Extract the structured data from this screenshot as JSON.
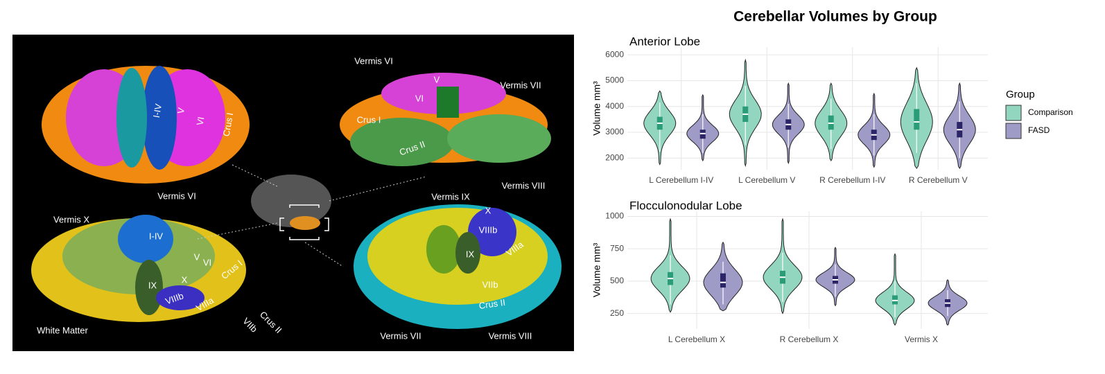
{
  "image": {
    "labels": [
      "Vermis VI",
      "I-IV",
      "V",
      "VI",
      "Crus I",
      "Vermis X",
      "White Matter",
      "I-IV",
      "V",
      "VI",
      "Crus I",
      "IX",
      "X",
      "VIIIb",
      "VIIIa",
      "VIIb",
      "Crus II",
      "Vermis VI",
      "V",
      "VI",
      "Vermis VII",
      "Crus I",
      "Crus II",
      "Vermis VIII",
      "Vermis IX",
      "X",
      "VIIIb",
      "IX",
      "VIIIa",
      "VIIb",
      "Crus II",
      "Vermis VII",
      "Vermis VIII"
    ]
  },
  "title": "Cerebellar Volumes by Group",
  "legend": {
    "title": "Group",
    "groups": [
      {
        "name": "Comparison",
        "color": "#93d6c0",
        "box_color": "#2a9d78"
      },
      {
        "name": "FASD",
        "color": "#9e9bc6",
        "box_color": "#2b2466"
      }
    ]
  },
  "chart_data": [
    {
      "type": "violin",
      "title": "Anterior Lobe",
      "ylabel": "Volume mm³",
      "categories": [
        "L Cerebellum I-IV",
        "L Cerebellum V",
        "R Cerebellum I-IV",
        "R Cerebellum V"
      ],
      "ylim": [
        1550,
        6300
      ],
      "yticks": [
        2000,
        3000,
        4000,
        5000,
        6000
      ],
      "grid": true,
      "series": [
        {
          "values": [
            {
              "min": 1750,
              "whisker_low": 2250,
              "q1": 3100,
              "median": 3350,
              "q3": 3600,
              "whisker_high": 4150,
              "max": 4600
            },
            {
              "min": 1700,
              "whisker_low": 2500,
              "q1": 3400,
              "median": 3700,
              "q3": 4000,
              "whisker_high": 4800,
              "max": 5800
            },
            {
              "min": 1900,
              "whisker_low": 2350,
              "q1": 3100,
              "median": 3350,
              "q3": 3650,
              "whisker_high": 4300,
              "max": 4900
            },
            {
              "min": 1600,
              "whisker_low": 2200,
              "q1": 3100,
              "median": 3400,
              "q3": 3900,
              "whisker_high": 4900,
              "max": 5500
            }
          ]
        },
        {
          "values": [
            {
              "min": 1900,
              "whisker_low": 2200,
              "q1": 2750,
              "median": 2950,
              "q3": 3100,
              "whisker_high": 3700,
              "max": 4450
            },
            {
              "min": 1800,
              "whisker_low": 2400,
              "q1": 3100,
              "median": 3300,
              "q3": 3500,
              "whisker_high": 4100,
              "max": 4900
            },
            {
              "min": 1650,
              "whisker_low": 2100,
              "q1": 2700,
              "median": 2900,
              "q3": 3100,
              "whisker_high": 3700,
              "max": 4500
            },
            {
              "min": 1600,
              "whisker_low": 2000,
              "q1": 2800,
              "median": 3100,
              "q3": 3400,
              "whisker_high": 4200,
              "max": 4900
            }
          ]
        }
      ]
    },
    {
      "type": "violin",
      "title": "Flocculonodular Lobe",
      "ylabel": "Volume mm³",
      "categories": [
        "L Cerebellum X",
        "R Cerebellum X",
        "Vermis X"
      ],
      "ylim": [
        130,
        1040
      ],
      "yticks": [
        250,
        500,
        750,
        1000
      ],
      "grid": true,
      "series": [
        {
          "values": [
            {
              "min": 260,
              "whisker_low": 320,
              "q1": 470,
              "median": 520,
              "q3": 570,
              "whisker_high": 700,
              "max": 980
            },
            {
              "min": 250,
              "whisker_low": 340,
              "q1": 480,
              "median": 530,
              "q3": 580,
              "whisker_high": 720,
              "max": 980
            },
            {
              "min": 160,
              "whisker_low": 220,
              "q1": 320,
              "median": 350,
              "q3": 390,
              "whisker_high": 500,
              "max": 710
            }
          ]
        },
        {
          "values": [
            {
              "min": 270,
              "whisker_low": 320,
              "q1": 450,
              "median": 490,
              "q3": 560,
              "whisker_high": 650,
              "max": 800
            },
            {
              "min": 310,
              "whisker_low": 380,
              "q1": 480,
              "median": 510,
              "q3": 540,
              "whisker_high": 630,
              "max": 760
            },
            {
              "min": 160,
              "whisker_low": 230,
              "q1": 300,
              "median": 330,
              "q3": 360,
              "whisker_high": 430,
              "max": 510
            }
          ]
        }
      ]
    }
  ]
}
